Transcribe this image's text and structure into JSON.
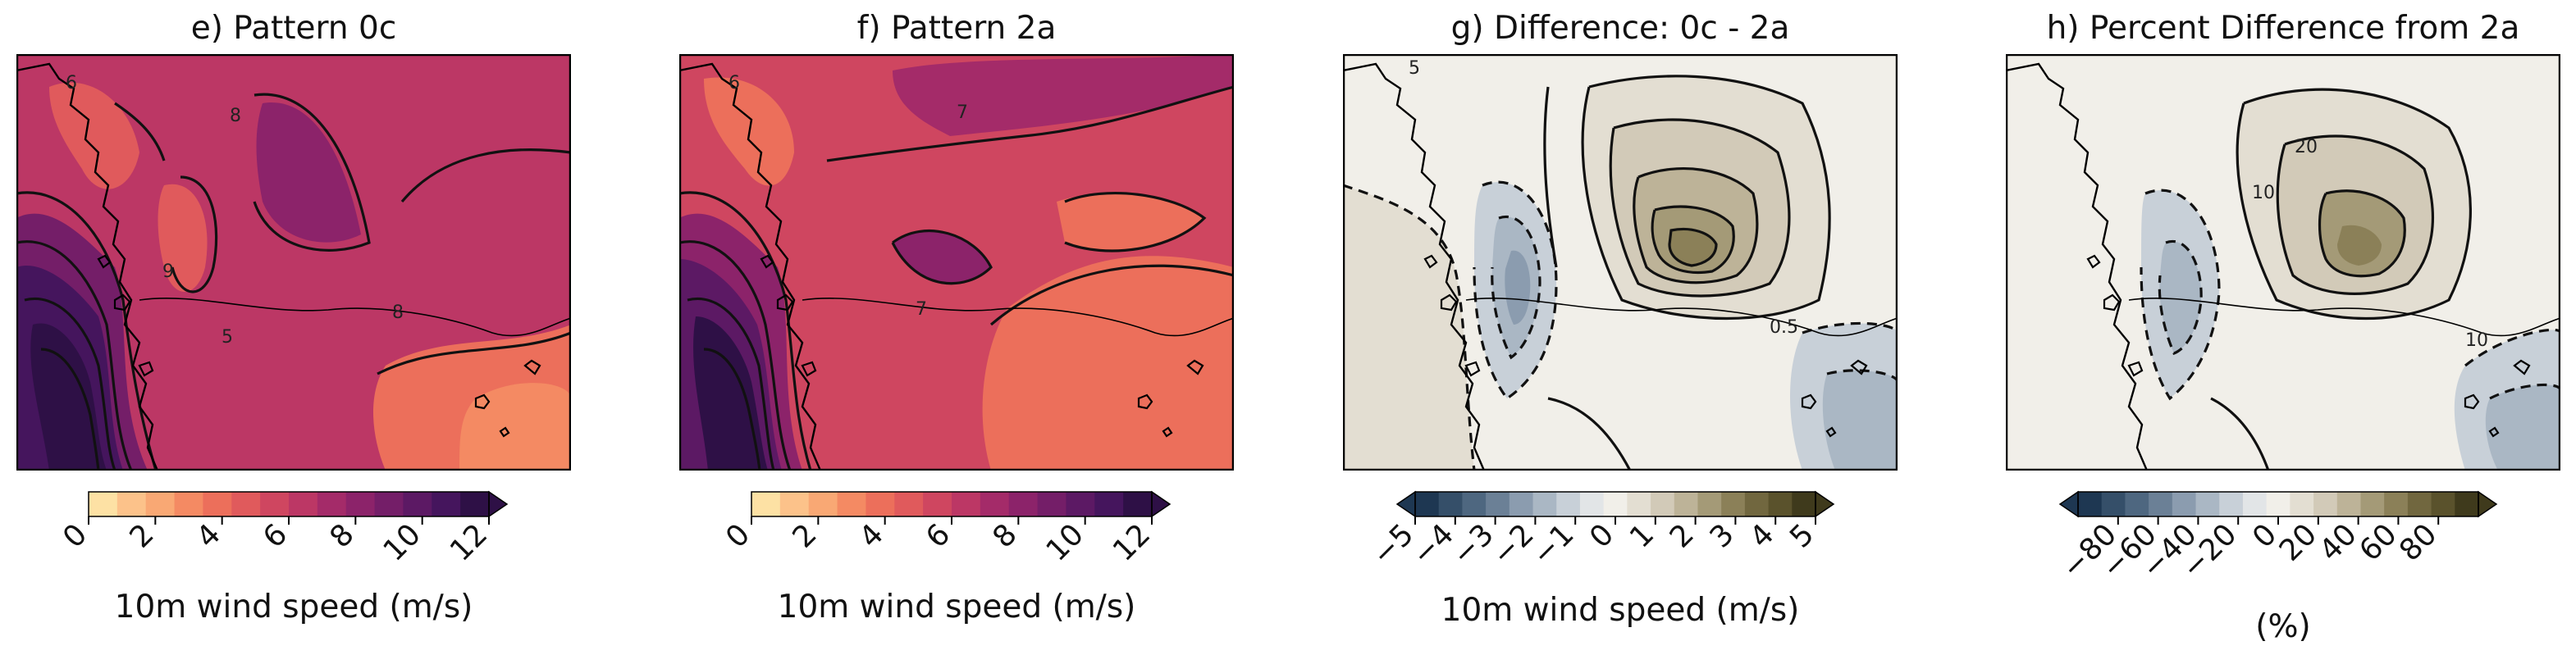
{
  "chart_data": [
    {
      "type": "heatmap",
      "title": "e) Pattern 0c",
      "colorbar": {
        "label": "10m wind speed (m/s)",
        "ticks": [
          "0",
          "2",
          "4",
          "6",
          "8",
          "10",
          "12"
        ],
        "range": [
          0,
          12
        ],
        "extend": "max",
        "colormap": "sequential yellow-orange-magenta-purple"
      },
      "contour_labels": [
        "6",
        "8",
        "9",
        "8",
        "5"
      ],
      "map_region": "coastal domain with islands (western coastline)"
    },
    {
      "type": "heatmap",
      "title": "f) Pattern 2a",
      "colorbar": {
        "label": "10m wind speed (m/s)",
        "ticks": [
          "0",
          "2",
          "4",
          "6",
          "8",
          "10",
          "12"
        ],
        "range": [
          0,
          12
        ],
        "extend": "max",
        "colormap": "sequential yellow-orange-magenta-purple"
      },
      "contour_labels": [
        "6",
        "7",
        "7"
      ],
      "map_region": "coastal domain with islands (western coastline)"
    },
    {
      "type": "heatmap",
      "title": "g) Difference: 0c - 2a",
      "colorbar": {
        "label": "10m wind speed (m/s)",
        "ticks": [
          "−5",
          "−4",
          "−3",
          "−2",
          "−1",
          "0",
          "1",
          "2",
          "3",
          "4",
          "5"
        ],
        "range": [
          -5,
          5
        ],
        "extend": "both",
        "colormap": "diverging blue-grey to olive-brown"
      },
      "contour_labels": [
        "5",
        "0.5"
      ],
      "map_region": "coastal domain with islands (western coastline)"
    },
    {
      "type": "heatmap",
      "title": "h) Percent Difference from 2a",
      "colorbar": {
        "label": "(%)",
        "ticks": [
          "−80",
          "−60",
          "−40",
          "−20",
          "0",
          "20",
          "40",
          "60",
          "80"
        ],
        "range": [
          -100,
          100
        ],
        "extend": "both",
        "colormap": "diverging blue-grey to olive-brown"
      },
      "contour_labels": [
        "20",
        "10",
        "10"
      ],
      "map_region": "coastal domain with islands (western coastline)"
    }
  ],
  "colors": {
    "seq": [
      "#fde1a4",
      "#fcc28a",
      "#f9a874",
      "#f48a63",
      "#ec6f5b",
      "#e05a5c",
      "#cf4660",
      "#bc3765",
      "#a42b69",
      "#8c236a",
      "#741e68",
      "#5c1964",
      "#45155d",
      "#2e1046"
    ],
    "div": [
      "#1e3752",
      "#354f69",
      "#4e6780",
      "#6b8096",
      "#8b9caf",
      "#aab7c4",
      "#c8d0d8",
      "#e2e5e7",
      "#f1efe9",
      "#e3ded2",
      "#d2cab8",
      "#bdb398",
      "#a49a77",
      "#8b8058",
      "#71673f",
      "#5a522c",
      "#3f3a1c"
    ]
  }
}
